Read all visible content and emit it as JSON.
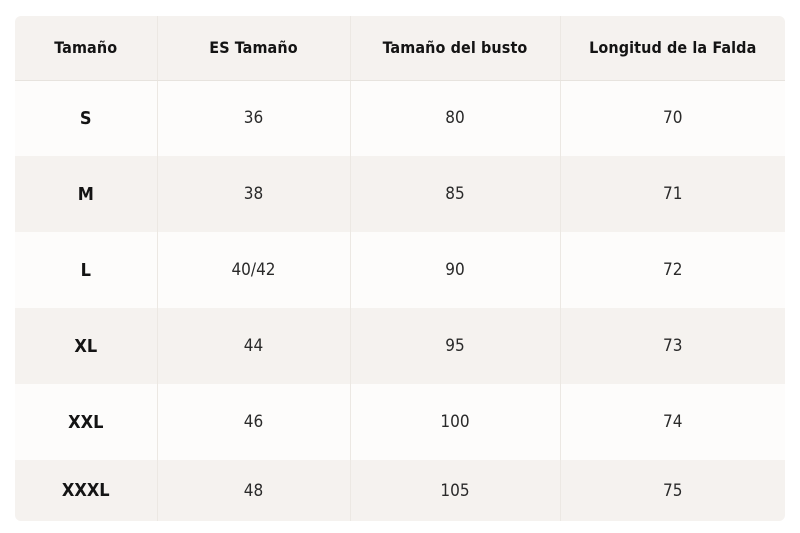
{
  "table": {
    "headers": [
      "Tamaño",
      "ES Tamaño",
      "Tamaño del busto",
      "Longitud de la Falda"
    ],
    "rows": [
      [
        "S",
        "36",
        "80",
        "70"
      ],
      [
        "M",
        "38",
        "85",
        "71"
      ],
      [
        "L",
        "40/42",
        "90",
        "72"
      ],
      [
        "XL",
        "44",
        "95",
        "73"
      ],
      [
        "XXL",
        "46",
        "100",
        "74"
      ],
      [
        "XXXL",
        "48",
        "105",
        "75"
      ]
    ]
  },
  "colors": {
    "header_bg": "#f5f2ef",
    "row_light": "#fdfcfb",
    "row_tinted": "#f5f2ef",
    "text": "#141414"
  }
}
